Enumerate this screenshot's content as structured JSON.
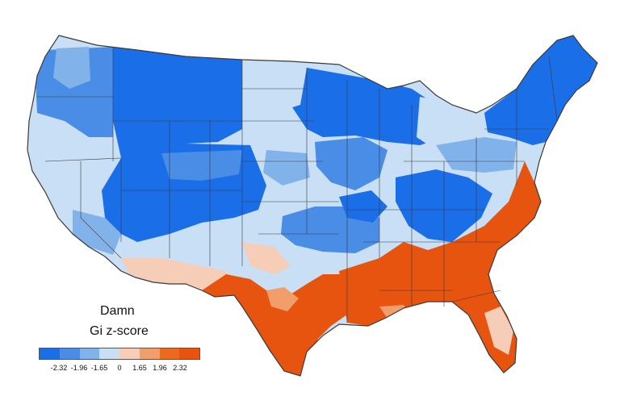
{
  "map": {
    "title_word": "Damn",
    "legend_title": "Gi z-score",
    "legend_classes": [
      {
        "color": "#1a6ee8"
      },
      {
        "color": "#4a8de6"
      },
      {
        "color": "#82b2ea"
      },
      {
        "color": "#c8dff5"
      },
      {
        "color": "#f6cdb6"
      },
      {
        "color": "#f29d6c"
      },
      {
        "color": "#ec6a1f"
      },
      {
        "color": "#e65410"
      }
    ],
    "legend_ticks": [
      "-2.32",
      "-1.96",
      "-1.65",
      "0",
      "1.65",
      "1.96",
      "2.32"
    ],
    "colors": {
      "strong_blue": "#1a6ee8",
      "mid_blue": "#4a8de6",
      "light_blue": "#82b2ea",
      "pale_blue": "#c8dff5",
      "pale_orange": "#f6cdb6",
      "mid_orange": "#f29d6c",
      "strong_orange": "#e65410",
      "border": "#3a3a3a"
    }
  }
}
